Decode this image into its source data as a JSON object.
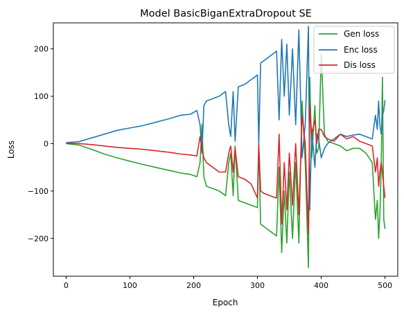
{
  "chart_data": {
    "type": "line",
    "title": "Model BasicBiganExtraDropout SE",
    "xlabel": "Epoch",
    "ylabel": "Loss",
    "xlim": [
      -20,
      520
    ],
    "ylim": [
      -280,
      255
    ],
    "xticks": [
      0,
      100,
      200,
      300,
      400,
      500
    ],
    "yticks": [
      -200,
      -100,
      0,
      100,
      200
    ],
    "xtick_labels": [
      "0",
      "100",
      "200",
      "300",
      "400",
      "500"
    ],
    "ytick_labels": [
      "−200",
      "−100",
      "0",
      "100",
      "200"
    ],
    "grid": false,
    "legend": "top-right",
    "series": [
      {
        "name": "Gen loss",
        "color": "#2ca02c",
        "x": [
          0,
          20,
          40,
          60,
          80,
          100,
          120,
          140,
          160,
          180,
          195,
          205,
          210,
          213,
          216,
          220,
          230,
          240,
          250,
          255,
          258,
          262,
          265,
          270,
          280,
          290,
          300,
          302,
          305,
          310,
          320,
          330,
          334,
          338,
          342,
          346,
          350,
          355,
          360,
          365,
          370,
          375,
          380,
          382,
          385,
          390,
          393,
          396,
          400,
          405,
          410,
          420,
          430,
          440,
          450,
          460,
          470,
          480,
          485,
          488,
          490,
          492,
          494,
          496,
          498,
          500
        ],
        "y": [
          0,
          -3,
          -12,
          -22,
          -30,
          -37,
          -44,
          -50,
          -56,
          -62,
          -65,
          -70,
          -40,
          40,
          -70,
          -90,
          -95,
          -100,
          -110,
          -40,
          -20,
          -110,
          -5,
          -120,
          -125,
          -130,
          -135,
          0,
          -170,
          -175,
          -185,
          -195,
          -50,
          -230,
          -100,
          -210,
          -60,
          -200,
          -40,
          -210,
          90,
          -40,
          -262,
          140,
          -30,
          80,
          -20,
          -10,
          190,
          20,
          5,
          0,
          -5,
          -15,
          -10,
          -10,
          -20,
          -40,
          -160,
          -120,
          -200,
          -150,
          -50,
          140,
          -160,
          -180
        ]
      },
      {
        "name": "Enc loss",
        "color": "#1f77b4",
        "x": [
          0,
          20,
          40,
          60,
          80,
          100,
          120,
          140,
          160,
          180,
          195,
          205,
          210,
          213,
          216,
          220,
          230,
          240,
          250,
          255,
          258,
          262,
          265,
          270,
          280,
          290,
          300,
          302,
          305,
          310,
          320,
          330,
          334,
          338,
          342,
          346,
          350,
          355,
          360,
          365,
          370,
          375,
          380,
          382,
          385,
          390,
          393,
          396,
          400,
          405,
          410,
          420,
          430,
          440,
          450,
          460,
          470,
          480,
          485,
          488,
          490,
          492,
          494,
          496,
          498,
          500
        ],
        "y": [
          2,
          4,
          12,
          20,
          28,
          33,
          38,
          45,
          52,
          60,
          62,
          70,
          40,
          -20,
          80,
          90,
          95,
          100,
          110,
          40,
          15,
          110,
          5,
          120,
          125,
          135,
          145,
          0,
          170,
          175,
          185,
          195,
          50,
          220,
          100,
          210,
          60,
          200,
          40,
          240,
          -30,
          40,
          248,
          -140,
          30,
          -50,
          20,
          10,
          -30,
          -10,
          0,
          10,
          20,
          15,
          18,
          20,
          15,
          10,
          60,
          30,
          90,
          40,
          20,
          60,
          70,
          92
        ]
      },
      {
        "name": "Dis loss",
        "color": "#d62728",
        "x": [
          0,
          20,
          40,
          60,
          80,
          100,
          120,
          140,
          160,
          180,
          195,
          205,
          210,
          213,
          216,
          220,
          230,
          240,
          250,
          255,
          258,
          262,
          265,
          270,
          280,
          290,
          300,
          302,
          305,
          310,
          320,
          330,
          334,
          338,
          342,
          346,
          350,
          355,
          360,
          365,
          370,
          375,
          380,
          382,
          385,
          390,
          393,
          396,
          400,
          405,
          410,
          420,
          430,
          440,
          450,
          460,
          470,
          480,
          485,
          488,
          490,
          492,
          494,
          496,
          498,
          500
        ],
        "y": [
          1,
          0,
          -2,
          -5,
          -8,
          -10,
          -12,
          -15,
          -18,
          -22,
          -24,
          -26,
          15,
          -10,
          -30,
          -40,
          -50,
          -60,
          -60,
          -20,
          -5,
          -60,
          -10,
          -70,
          -75,
          -85,
          -115,
          0,
          -100,
          -105,
          -110,
          -115,
          20,
          -170,
          -40,
          -140,
          -20,
          -130,
          0,
          -150,
          60,
          0,
          -190,
          80,
          20,
          50,
          0,
          30,
          30,
          15,
          10,
          5,
          20,
          10,
          15,
          5,
          0,
          -5,
          -60,
          -30,
          -90,
          -60,
          -40,
          -60,
          -90,
          -115
        ]
      }
    ]
  }
}
